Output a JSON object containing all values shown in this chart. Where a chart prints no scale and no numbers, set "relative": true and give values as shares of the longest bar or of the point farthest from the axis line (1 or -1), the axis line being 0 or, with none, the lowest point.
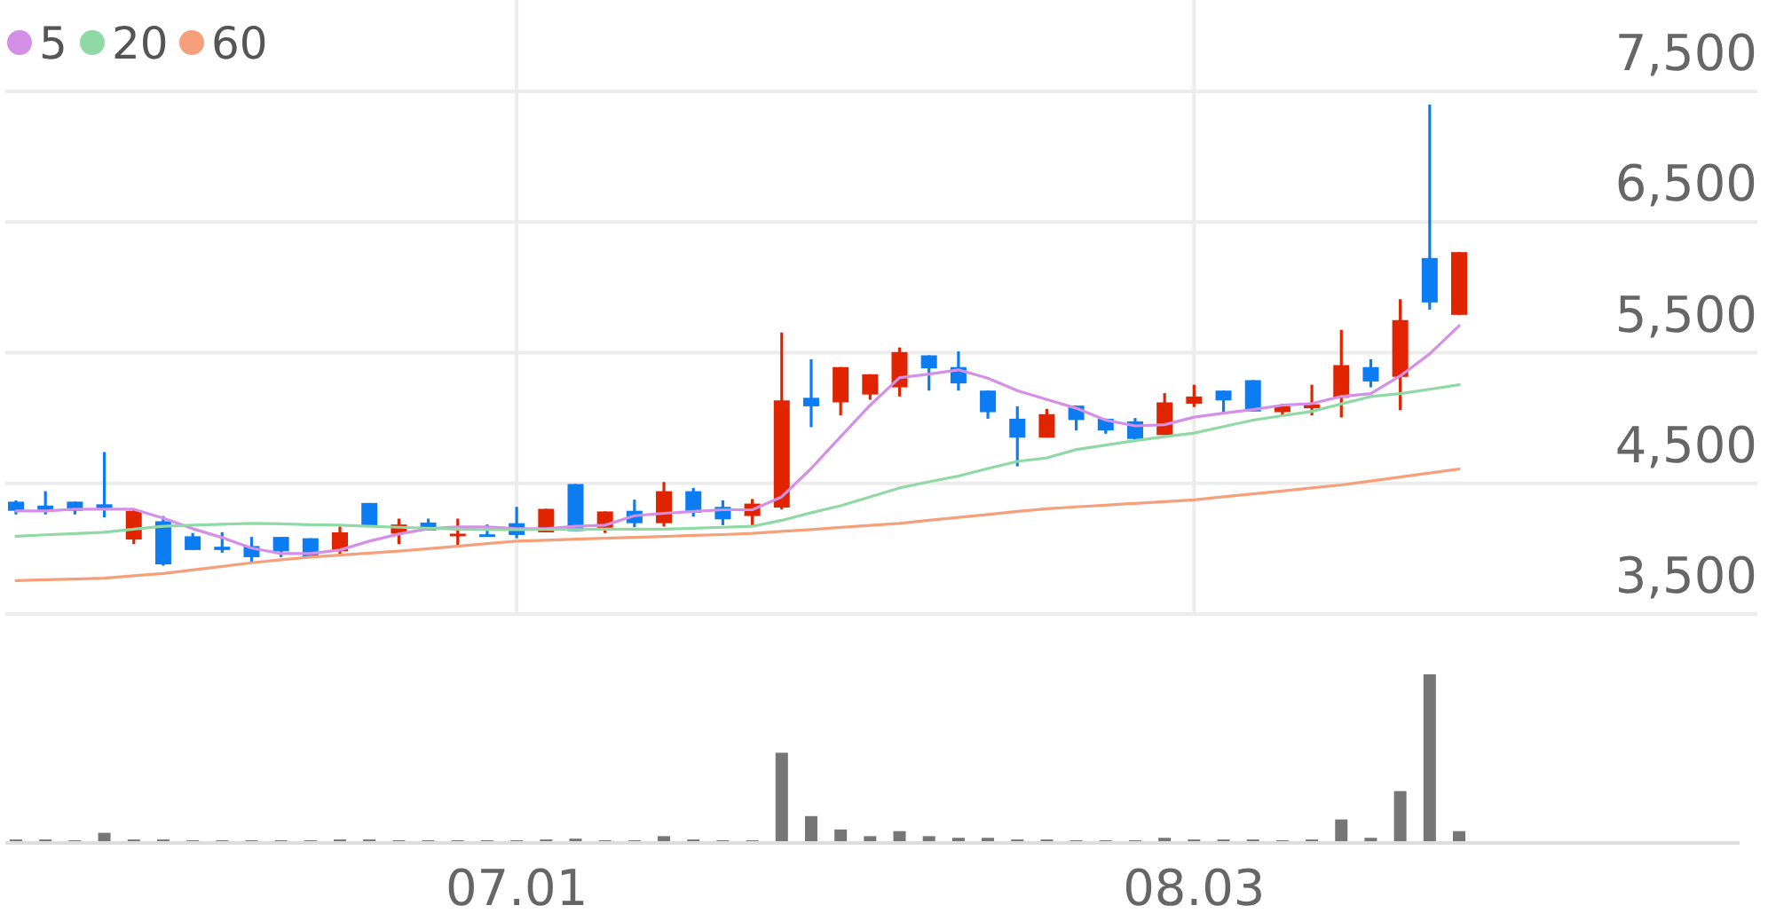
{
  "chart_data": [
    {
      "type": "candlestick",
      "categories": [
        null,
        null,
        null,
        null,
        null,
        null,
        null,
        null,
        null,
        null,
        null,
        null,
        null,
        null,
        null,
        null,
        null,
        "07.01",
        null,
        null,
        null,
        null,
        null,
        null,
        null,
        null,
        null,
        null,
        null,
        null,
        null,
        null,
        null,
        null,
        null,
        null,
        null,
        null,
        null,
        null,
        "08.03",
        null,
        null,
        null,
        null,
        null,
        null,
        null,
        null,
        null
      ],
      "ohlc": [
        [
          4360,
          4370,
          4262,
          4290
        ],
        [
          4330,
          4440,
          4262,
          4290
        ],
        [
          4360,
          4360,
          4262,
          4290
        ],
        [
          4340,
          4740,
          4240,
          4310
        ],
        [
          4070,
          4300,
          4035,
          4290
        ],
        [
          4210,
          4250,
          3870,
          3880
        ],
        [
          4095,
          4120,
          3990,
          3990
        ],
        [
          4015,
          4126,
          3970,
          3990
        ],
        [
          4020,
          4090,
          3890,
          3935
        ],
        [
          4090,
          4090,
          3935,
          3980
        ],
        [
          4080,
          4080,
          3935,
          3935
        ],
        [
          3980,
          4170,
          3955,
          4125
        ],
        [
          4350,
          4350,
          4170,
          4170
        ],
        [
          4115,
          4230,
          4035,
          4185
        ],
        [
          4200,
          4230,
          4140,
          4140
        ],
        [
          4100,
          4230,
          4020,
          4115
        ],
        [
          4110,
          4185,
          4100,
          4100
        ],
        [
          4195,
          4320,
          4080,
          4105
        ],
        [
          4125,
          4305,
          4125,
          4305
        ],
        [
          4495,
          4495,
          4135,
          4135
        ],
        [
          4160,
          4285,
          4120,
          4285
        ],
        [
          4290,
          4375,
          4165,
          4195
        ],
        [
          4195,
          4510,
          4170,
          4440
        ],
        [
          4440,
          4465,
          4245,
          4275
        ],
        [
          4320,
          4370,
          4180,
          4225
        ],
        [
          4250,
          4380,
          4180,
          4345
        ],
        [
          4315,
          5655,
          4300,
          5135
        ],
        [
          5155,
          5450,
          4930,
          5090
        ],
        [
          5120,
          5390,
          5020,
          5390
        ],
        [
          5180,
          5335,
          5140,
          5335
        ],
        [
          5235,
          5540,
          5165,
          5505
        ],
        [
          5480,
          5480,
          5210,
          5380
        ],
        [
          5390,
          5510,
          5210,
          5265
        ],
        [
          5210,
          5210,
          4995,
          5045
        ],
        [
          4995,
          5090,
          4630,
          4850
        ],
        [
          4850,
          5070,
          4850,
          5030
        ],
        [
          5095,
          5095,
          4905,
          4985
        ],
        [
          4995,
          4995,
          4880,
          4905
        ],
        [
          4975,
          5000,
          4820,
          4840
        ],
        [
          4870,
          5190,
          4870,
          5120
        ],
        [
          5110,
          5255,
          5085,
          5165
        ],
        [
          5210,
          5210,
          5030,
          5135
        ],
        [
          5290,
          5290,
          5050,
          5050
        ],
        [
          5045,
          5110,
          5020,
          5090
        ],
        [
          5075,
          5255,
          5020,
          5105
        ],
        [
          5155,
          5675,
          5005,
          5405
        ],
        [
          5390,
          5450,
          5235,
          5280
        ],
        [
          5315,
          5910,
          5060,
          5750
        ],
        [
          6225,
          7400,
          5830,
          5885
        ],
        [
          5790,
          6270,
          5790,
          6270
        ]
      ],
      "colors": [
        "#0b7cf2",
        "#0b7cf2",
        "#0b7cf2",
        "#0b7cf2",
        "#e02400",
        "#0b7cf2",
        "#0b7cf2",
        "#0b7cf2",
        "#0b7cf2",
        "#0b7cf2",
        "#0b7cf2",
        "#e02400",
        "#0b7cf2",
        "#e02400",
        "#0b7cf2",
        "#e02400",
        "#0b7cf2",
        "#0b7cf2",
        "#e02400",
        "#0b7cf2",
        "#e02400",
        "#0b7cf2",
        "#e02400",
        "#0b7cf2",
        "#0b7cf2",
        "#e02400",
        "#e02400",
        "#0b7cf2",
        "#e02400",
        "#e02400",
        "#e02400",
        "#0b7cf2",
        "#0b7cf2",
        "#0b7cf2",
        "#0b7cf2",
        "#e02400",
        "#0b7cf2",
        "#0b7cf2",
        "#0b7cf2",
        "#e02400",
        "#e02400",
        "#0b7cf2",
        "#0b7cf2",
        "#e02400",
        "#e02400",
        "#e02400",
        "#0b7cf2",
        "#e02400",
        "#0b7cf2",
        "#e02400"
      ],
      "series": [
        {
          "name": "5",
          "type": "line",
          "color": "#d390e6",
          "values": [
            4289,
            4289,
            4302,
            4302,
            4302,
            4234,
            4153,
            4085,
            4004,
            3963,
            3963,
            3990,
            4058,
            4112,
            4153,
            4167,
            4167,
            4153,
            4153,
            4171,
            4180,
            4252,
            4271,
            4285,
            4298,
            4298,
            4397,
            4614,
            4858,
            5098,
            5309,
            5336,
            5369,
            5305,
            5210,
            5142,
            5075,
            4984,
            4940,
            4949,
            5007,
            5038,
            5065,
            5098,
            5111,
            5165,
            5187,
            5322,
            5491,
            5707
          ]
        },
        {
          "name": "20",
          "type": "line",
          "color": "#8fd9a4",
          "values": [
            4095,
            4106,
            4115,
            4126,
            4149,
            4171,
            4180,
            4187,
            4194,
            4190,
            4184,
            4180,
            4171,
            4164,
            4157,
            4150,
            4146,
            4146,
            4147,
            4147,
            4149,
            4149,
            4149,
            4156,
            4164,
            4171,
            4217,
            4275,
            4329,
            4397,
            4465,
            4512,
            4556,
            4614,
            4668,
            4695,
            4759,
            4793,
            4827,
            4858,
            4885,
            4935,
            4984,
            5018,
            5051,
            5108,
            5165,
            5187,
            5220,
            5255
          ]
        },
        {
          "name": "60",
          "type": "line",
          "color": "#f5a07a",
          "values": [
            3756,
            3763,
            3768,
            3774,
            3793,
            3810,
            3837,
            3864,
            3892,
            3915,
            3936,
            3951,
            3966,
            3981,
            4000,
            4019,
            4039,
            4058,
            4065,
            4073,
            4080,
            4087,
            4094,
            4102,
            4108,
            4117,
            4132,
            4146,
            4163,
            4178,
            4194,
            4217,
            4239,
            4262,
            4285,
            4306,
            4320,
            4333,
            4347,
            4360,
            4374,
            4397,
            4420,
            4442,
            4465,
            4488,
            4518,
            4548,
            4579,
            4610
          ]
        }
      ],
      "ylim": [
        3500,
        8200
      ],
      "yticks": [
        {
          "value": 3500,
          "label": "3,500"
        },
        {
          "value": 4500,
          "label": "4,500"
        },
        {
          "value": 5500,
          "label": "5,500"
        },
        {
          "value": 6500,
          "label": "6,500"
        },
        {
          "value": 7500,
          "label": "7,500"
        }
      ],
      "grid": true,
      "legend": "top left",
      "tick_labels": "y"
    },
    {
      "type": "bar",
      "categories": [
        null,
        null,
        null,
        null,
        null,
        null,
        null,
        null,
        null,
        null,
        null,
        null,
        null,
        null,
        null,
        null,
        null,
        "07.01",
        null,
        null,
        null,
        null,
        null,
        null,
        null,
        null,
        null,
        null,
        null,
        null,
        null,
        null,
        null,
        null,
        null,
        null,
        null,
        null,
        null,
        null,
        "08.03",
        null,
        null,
        null,
        null,
        null,
        null,
        null,
        null,
        null
      ],
      "values": [
        0.01,
        0.01,
        0.005,
        0.05,
        0.01,
        0.01,
        0.005,
        0.005,
        0.005,
        0.005,
        0.005,
        0.01,
        0.01,
        0.005,
        0.005,
        0.005,
        0.005,
        0.005,
        0.01,
        0.015,
        0.005,
        0.005,
        0.03,
        0.01,
        0.005,
        0.005,
        0.53,
        0.15,
        0.07,
        0.03,
        0.06,
        0.03,
        0.02,
        0.02,
        0.01,
        0.01,
        0.005,
        0.005,
        0.005,
        0.02,
        0.01,
        0.01,
        0.01,
        0.005,
        0.01,
        0.13,
        0.02,
        0.3,
        1,
        0.06
      ],
      "color": "#767676",
      "relative": true,
      "tick_labels": "x"
    }
  ]
}
